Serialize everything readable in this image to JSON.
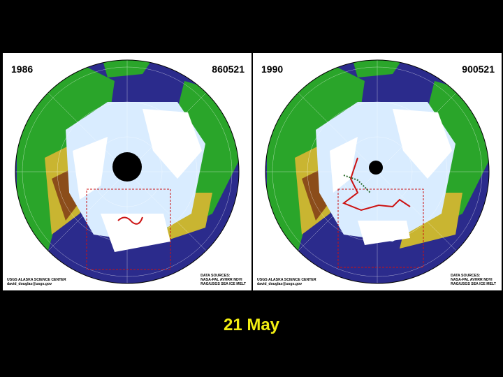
{
  "panels": [
    {
      "year": "1986",
      "code": "860521",
      "credit_left": [
        "USGS ALASKA SCIENCE CENTER",
        "david_douglas@usgs.gov"
      ],
      "credit_right": [
        "DATA SOURCES:",
        "NASA-PAL AVHRR NDVI",
        "RAG/USGS SEA ICE MELT"
      ],
      "pole_hole": "large",
      "melt_line_color": "#cc1111"
    },
    {
      "year": "1990",
      "code": "900521",
      "credit_left": [
        "USGS ALASKA SCIENCE CENTER",
        "david_douglas@usgs.gov"
      ],
      "credit_right": [
        "DATA SOURCES:",
        "NASA-PAL AVHRR NDVI",
        "RAG/USGS SEA ICE MELT"
      ],
      "pole_hole": "small",
      "melt_line_color": "#cc1111"
    }
  ],
  "caption": "21 May",
  "colors": {
    "ocean": "#2b2b8c",
    "land_green": "#2aa52a",
    "land_yellow": "#c9b531",
    "land_brown": "#8b4d1a",
    "sea_ice": "#d9ecff",
    "snow": "#ffffff",
    "caption": "#f2ee12"
  }
}
